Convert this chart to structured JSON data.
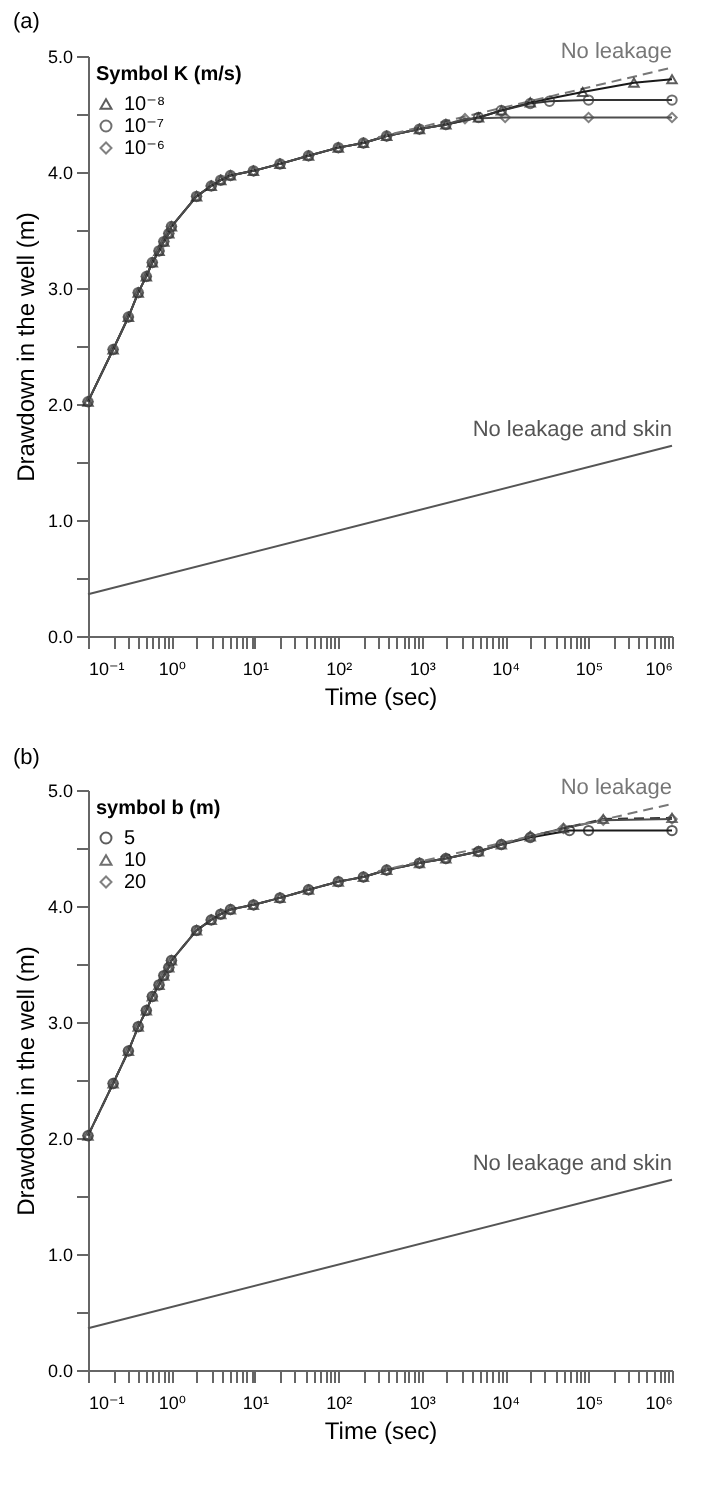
{
  "chart_data": [
    {
      "type": "line",
      "title": "(a)",
      "xlabel": "Time (sec)",
      "ylabel": "Drawdown in the well (m)",
      "legend_title": "Symbol   K (m/s)",
      "legend": "top left",
      "grid": false,
      "log": "x",
      "xlim": [
        0.1,
        1000000
      ],
      "ylim": [
        0,
        5
      ],
      "xticks": [
        {
          "value": 0.1,
          "label": "10⁻¹"
        },
        {
          "value": 0.2,
          "label": null
        },
        {
          "value": 0.3,
          "label": null
        },
        {
          "value": 0.4,
          "label": null
        },
        {
          "value": 0.5,
          "label": null
        },
        {
          "value": 0.6,
          "label": null
        },
        {
          "value": 0.7,
          "label": null
        },
        {
          "value": 0.8,
          "label": null
        },
        {
          "value": 0.9,
          "label": null
        },
        {
          "value": 1,
          "label": "10⁰"
        },
        {
          "value": 2,
          "label": null
        },
        {
          "value": 3,
          "label": null
        },
        {
          "value": 4,
          "label": null
        },
        {
          "value": 5,
          "label": null
        },
        {
          "value": 6,
          "label": null
        },
        {
          "value": 7,
          "label": null
        },
        {
          "value": 8,
          "label": null
        },
        {
          "value": 9,
          "label": null
        },
        {
          "value": 10,
          "label": "10¹"
        },
        {
          "value": 20,
          "label": null
        },
        {
          "value": 30,
          "label": null
        },
        {
          "value": 40,
          "label": null
        },
        {
          "value": 50,
          "label": null
        },
        {
          "value": 60,
          "label": null
        },
        {
          "value": 70,
          "label": null
        },
        {
          "value": 80,
          "label": null
        },
        {
          "value": 90,
          "label": null
        },
        {
          "value": 100,
          "label": "10²"
        },
        {
          "value": 200,
          "label": null
        },
        {
          "value": 300,
          "label": null
        },
        {
          "value": 400,
          "label": null
        },
        {
          "value": 500,
          "label": null
        },
        {
          "value": 600,
          "label": null
        },
        {
          "value": 700,
          "label": null
        },
        {
          "value": 800,
          "label": null
        },
        {
          "value": 900,
          "label": null
        },
        {
          "value": 1000,
          "label": "10³"
        },
        {
          "value": 2000,
          "label": null
        },
        {
          "value": 3000,
          "label": null
        },
        {
          "value": 4000,
          "label": null
        },
        {
          "value": 5000,
          "label": null
        },
        {
          "value": 6000,
          "label": null
        },
        {
          "value": 7000,
          "label": null
        },
        {
          "value": 8000,
          "label": null
        },
        {
          "value": 9000,
          "label": null
        },
        {
          "value": 10000,
          "label": "10⁴"
        },
        {
          "value": 20000,
          "label": null
        },
        {
          "value": 30000,
          "label": null
        },
        {
          "value": 40000,
          "label": null
        },
        {
          "value": 50000,
          "label": null
        },
        {
          "value": 60000,
          "label": null
        },
        {
          "value": 70000,
          "label": null
        },
        {
          "value": 80000,
          "label": null
        },
        {
          "value": 90000,
          "label": null
        },
        {
          "value": 100000,
          "label": "10⁵"
        },
        {
          "value": 200000,
          "label": null
        },
        {
          "value": 300000,
          "label": null
        },
        {
          "value": 400000,
          "label": null
        },
        {
          "value": 500000,
          "label": null
        },
        {
          "value": 600000,
          "label": null
        },
        {
          "value": 700000,
          "label": null
        },
        {
          "value": 800000,
          "label": null
        },
        {
          "value": 900000,
          "label": null
        },
        {
          "value": 1000000,
          "label": "10⁶"
        }
      ],
      "yticks": [
        {
          "value": 0,
          "label": "0.0"
        },
        {
          "value": 0.5,
          "label": null
        },
        {
          "value": 1,
          "label": "1.0"
        },
        {
          "value": 1.5,
          "label": null
        },
        {
          "value": 2,
          "label": "2.0"
        },
        {
          "value": 2.5,
          "label": null
        },
        {
          "value": 3,
          "label": "3.0"
        },
        {
          "value": 3.5,
          "label": null
        },
        {
          "value": 4,
          "label": "4.0"
        },
        {
          "value": 4.5,
          "label": null
        },
        {
          "value": 5,
          "label": "5.0"
        }
      ],
      "series": [
        {
          "name": "10⁻⁸",
          "color": "#1a1a1a",
          "marker": "triangle",
          "line_style": "solid",
          "x": [
            0.1,
            0.2,
            0.305,
            0.4,
            0.5,
            0.59,
            0.71,
            0.81,
            0.93,
            1,
            2,
            3,
            3.9,
            5.1,
            9.6,
            20,
            44,
            100,
            200,
            380,
            940,
            1950,
            4800,
            9000,
            20000,
            85000,
            350000,
            1000000
          ],
          "values": [
            2.02,
            2.47,
            2.75,
            2.96,
            3.1,
            3.22,
            3.32,
            3.4,
            3.47,
            3.53,
            3.79,
            3.88,
            3.93,
            3.97,
            4.01,
            4.07,
            4.14,
            4.21,
            4.25,
            4.31,
            4.37,
            4.41,
            4.47,
            4.53,
            4.6,
            4.69,
            4.77,
            4.8
          ]
        },
        {
          "name": "10⁻⁷",
          "color": "#333333",
          "marker": "circle",
          "line_style": "solid",
          "x": [
            0.1,
            0.2,
            0.305,
            0.4,
            0.5,
            0.59,
            0.71,
            0.81,
            0.93,
            1,
            2,
            3,
            3.9,
            5.1,
            9.6,
            20,
            44,
            100,
            200,
            380,
            940,
            1950,
            4800,
            9000,
            20000,
            34000,
            100000,
            1000000
          ],
          "values": [
            2.02,
            2.47,
            2.75,
            2.96,
            3.1,
            3.22,
            3.32,
            3.4,
            3.47,
            3.53,
            3.79,
            3.88,
            3.93,
            3.97,
            4.01,
            4.07,
            4.14,
            4.21,
            4.25,
            4.31,
            4.37,
            4.41,
            4.47,
            4.53,
            4.59,
            4.61,
            4.62,
            4.62
          ]
        },
        {
          "name": "10⁻⁶",
          "color": "#4d4d4d",
          "marker": "diamond",
          "line_style": "solid",
          "x": [
            0.1,
            0.2,
            0.305,
            0.4,
            0.5,
            0.59,
            0.71,
            0.81,
            0.93,
            1,
            2,
            3,
            3.9,
            5.1,
            9.6,
            20,
            44,
            100,
            200,
            380,
            940,
            1950,
            3300,
            10000,
            100000,
            1000000
          ],
          "values": [
            2.02,
            2.47,
            2.75,
            2.96,
            3.1,
            3.22,
            3.32,
            3.4,
            3.47,
            3.53,
            3.79,
            3.88,
            3.93,
            3.97,
            4.01,
            4.07,
            4.14,
            4.21,
            4.25,
            4.31,
            4.37,
            4.41,
            4.46,
            4.47,
            4.47,
            4.47
          ]
        },
        {
          "name": "No leakage",
          "color": "#777777",
          "marker": "none",
          "line_style": "dashed",
          "x": [
            300,
            1000000
          ],
          "values": [
            4.3,
            4.9
          ]
        },
        {
          "name": "No leakage and skin",
          "color": "#555555",
          "marker": "none",
          "line_style": "solid",
          "x": [
            0.1,
            1000000
          ],
          "values": [
            0.36,
            1.64
          ]
        }
      ]
    },
    {
      "type": "line",
      "title": "(b)",
      "xlabel": "Time (sec)",
      "ylabel": "Drawdown in the well (m)",
      "legend_title": "symbol   b (m)",
      "legend": "top left",
      "grid": false,
      "log": "x",
      "xlim": [
        0.1,
        1000000
      ],
      "ylim": [
        0,
        5
      ],
      "xticks": [
        {
          "value": 0.1,
          "label": "10⁻¹"
        },
        {
          "value": 0.2,
          "label": null
        },
        {
          "value": 0.3,
          "label": null
        },
        {
          "value": 0.4,
          "label": null
        },
        {
          "value": 0.5,
          "label": null
        },
        {
          "value": 0.6,
          "label": null
        },
        {
          "value": 0.7,
          "label": null
        },
        {
          "value": 0.8,
          "label": null
        },
        {
          "value": 0.9,
          "label": null
        },
        {
          "value": 1,
          "label": "10⁰"
        },
        {
          "value": 2,
          "label": null
        },
        {
          "value": 3,
          "label": null
        },
        {
          "value": 4,
          "label": null
        },
        {
          "value": 5,
          "label": null
        },
        {
          "value": 6,
          "label": null
        },
        {
          "value": 7,
          "label": null
        },
        {
          "value": 8,
          "label": null
        },
        {
          "value": 9,
          "label": null
        },
        {
          "value": 10,
          "label": "10¹"
        },
        {
          "value": 20,
          "label": null
        },
        {
          "value": 30,
          "label": null
        },
        {
          "value": 40,
          "label": null
        },
        {
          "value": 50,
          "label": null
        },
        {
          "value": 60,
          "label": null
        },
        {
          "value": 70,
          "label": null
        },
        {
          "value": 80,
          "label": null
        },
        {
          "value": 90,
          "label": null
        },
        {
          "value": 100,
          "label": "10²"
        },
        {
          "value": 200,
          "label": null
        },
        {
          "value": 300,
          "label": null
        },
        {
          "value": 400,
          "label": null
        },
        {
          "value": 500,
          "label": null
        },
        {
          "value": 600,
          "label": null
        },
        {
          "value": 700,
          "label": null
        },
        {
          "value": 800,
          "label": null
        },
        {
          "value": 900,
          "label": null
        },
        {
          "value": 1000,
          "label": "10³"
        },
        {
          "value": 2000,
          "label": null
        },
        {
          "value": 3000,
          "label": null
        },
        {
          "value": 4000,
          "label": null
        },
        {
          "value": 5000,
          "label": null
        },
        {
          "value": 6000,
          "label": null
        },
        {
          "value": 7000,
          "label": null
        },
        {
          "value": 8000,
          "label": null
        },
        {
          "value": 9000,
          "label": null
        },
        {
          "value": 10000,
          "label": "10⁴"
        },
        {
          "value": 20000,
          "label": null
        },
        {
          "value": 30000,
          "label": null
        },
        {
          "value": 40000,
          "label": null
        },
        {
          "value": 50000,
          "label": null
        },
        {
          "value": 60000,
          "label": null
        },
        {
          "value": 70000,
          "label": null
        },
        {
          "value": 80000,
          "label": null
        },
        {
          "value": 90000,
          "label": null
        },
        {
          "value": 100000,
          "label": "10⁵"
        },
        {
          "value": 200000,
          "label": null
        },
        {
          "value": 300000,
          "label": null
        },
        {
          "value": 400000,
          "label": null
        },
        {
          "value": 500000,
          "label": null
        },
        {
          "value": 600000,
          "label": null
        },
        {
          "value": 700000,
          "label": null
        },
        {
          "value": 800000,
          "label": null
        },
        {
          "value": 900000,
          "label": null
        },
        {
          "value": 1000000,
          "label": "10⁶"
        }
      ],
      "yticks": [
        {
          "value": 0,
          "label": "0.0"
        },
        {
          "value": 0.5,
          "label": null
        },
        {
          "value": 1,
          "label": "1.0"
        },
        {
          "value": 1.5,
          "label": null
        },
        {
          "value": 2,
          "label": "2.0"
        },
        {
          "value": 2.5,
          "label": null
        },
        {
          "value": 3,
          "label": "3.0"
        },
        {
          "value": 3.5,
          "label": null
        },
        {
          "value": 4,
          "label": "4.0"
        },
        {
          "value": 4.5,
          "label": null
        },
        {
          "value": 5,
          "label": "5.0"
        }
      ],
      "series": [
        {
          "name": "5",
          "color": "#1a1a1a",
          "marker": "circle",
          "line_style": "solid",
          "x": [
            0.1,
            0.2,
            0.305,
            0.4,
            0.5,
            0.59,
            0.71,
            0.81,
            0.93,
            1,
            2,
            3,
            3.9,
            5.1,
            9.6,
            20,
            44,
            100,
            200,
            380,
            940,
            1950,
            4800,
            9000,
            20000,
            59000,
            100000,
            1000000
          ],
          "values": [
            2.02,
            2.47,
            2.75,
            2.96,
            3.1,
            3.22,
            3.32,
            3.4,
            3.47,
            3.53,
            3.79,
            3.88,
            3.93,
            3.97,
            4.01,
            4.07,
            4.14,
            4.21,
            4.25,
            4.31,
            4.37,
            4.41,
            4.47,
            4.53,
            4.59,
            4.65,
            4.65,
            4.65
          ]
        },
        {
          "name": "10",
          "color": "#333333",
          "marker": "triangle",
          "line_style": "dashed",
          "x": [
            0.1,
            0.2,
            0.305,
            0.4,
            0.5,
            0.59,
            0.71,
            0.81,
            0.93,
            1,
            2,
            3,
            3.9,
            5.1,
            9.6,
            20,
            44,
            100,
            200,
            380,
            940,
            1950,
            4800,
            9000,
            20000,
            50000,
            150000,
            1000000
          ],
          "values": [
            2.02,
            2.47,
            2.75,
            2.96,
            3.1,
            3.22,
            3.32,
            3.4,
            3.47,
            3.53,
            3.79,
            3.88,
            3.93,
            3.97,
            4.01,
            4.07,
            4.14,
            4.21,
            4.25,
            4.31,
            4.37,
            4.41,
            4.47,
            4.53,
            4.6,
            4.67,
            4.75,
            4.76
          ]
        },
        {
          "name": "20",
          "color": "#4d4d4d",
          "marker": "diamond",
          "line_style": "solid",
          "x": [
            0.1,
            0.2,
            0.305,
            0.4,
            0.5,
            0.59,
            0.71,
            0.81,
            0.93,
            1,
            2,
            3,
            3.9,
            5.1,
            9.6,
            20,
            44,
            100,
            200,
            380,
            940,
            1950,
            4800,
            9000,
            20000,
            50000,
            150000,
            1000000
          ],
          "values": [
            2.02,
            2.47,
            2.75,
            2.96,
            3.1,
            3.22,
            3.32,
            3.4,
            3.47,
            3.53,
            3.79,
            3.88,
            3.93,
            3.97,
            4.01,
            4.07,
            4.14,
            4.21,
            4.25,
            4.31,
            4.37,
            4.41,
            4.47,
            4.53,
            4.6,
            4.67,
            4.74,
            4.75
          ]
        },
        {
          "name": "No leakage",
          "color": "#777777",
          "marker": "none",
          "line_style": "dashed",
          "x": [
            300,
            1000000
          ],
          "values": [
            4.3,
            4.88
          ]
        },
        {
          "name": "No leakage and skin",
          "color": "#555555",
          "marker": "none",
          "line_style": "solid",
          "x": [
            0.1,
            1000000
          ],
          "values": [
            0.36,
            1.64
          ]
        }
      ]
    }
  ]
}
